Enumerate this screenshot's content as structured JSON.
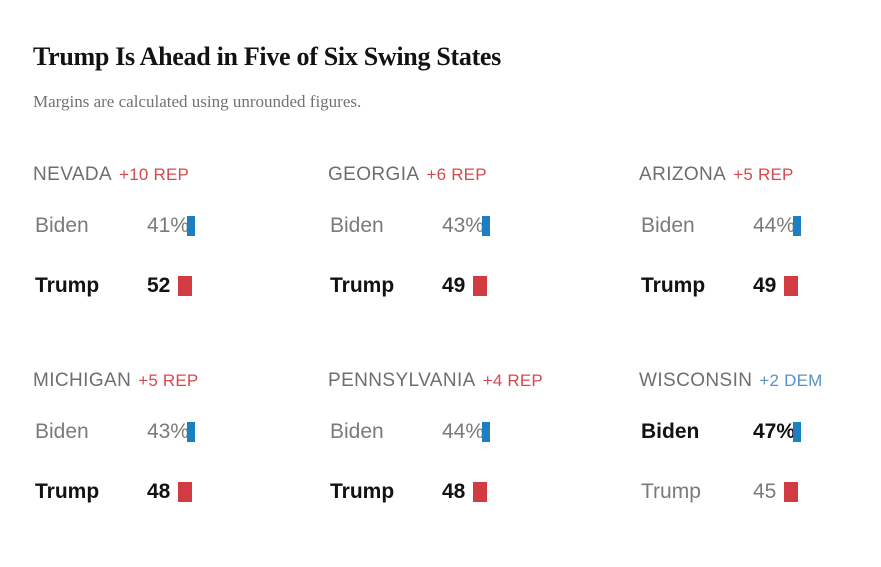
{
  "colors": {
    "dem-bar": "#1b7fc1",
    "rep-bar": "#d23b42",
    "dem-text": "#5493c9",
    "rep-text": "#d6494f",
    "text-dark": "#121212",
    "text-gray": "#7a7a7a",
    "state-gray": "#6e6e6e",
    "subtitle-gray": "#727272"
  },
  "chart_data": {
    "type": "bar",
    "title": "Trump Is Ahead in Five of Six Swing States",
    "subtitle": "Margins are calculated using unrounded figures.",
    "unit": "%",
    "legend_position": "none",
    "grid": false,
    "panels": [
      {
        "state": "NEVADA",
        "margin_label": "+10 REP",
        "margin_is_dem": false,
        "rows": [
          {
            "candidate": "Biden",
            "value": 41,
            "value_label": "41%",
            "party": "DEM",
            "emphasis": false
          },
          {
            "candidate": "Trump",
            "value": 52,
            "value_label": "52",
            "party": "REP",
            "emphasis": true
          }
        ]
      },
      {
        "state": "GEORGIA",
        "margin_label": "+6 REP",
        "margin_is_dem": false,
        "rows": [
          {
            "candidate": "Biden",
            "value": 43,
            "value_label": "43%",
            "party": "DEM",
            "emphasis": false
          },
          {
            "candidate": "Trump",
            "value": 49,
            "value_label": "49",
            "party": "REP",
            "emphasis": true
          }
        ]
      },
      {
        "state": "ARIZONA",
        "margin_label": "+5 REP",
        "margin_is_dem": false,
        "rows": [
          {
            "candidate": "Biden",
            "value": 44,
            "value_label": "44%",
            "party": "DEM",
            "emphasis": false
          },
          {
            "candidate": "Trump",
            "value": 49,
            "value_label": "49",
            "party": "REP",
            "emphasis": true
          }
        ]
      },
      {
        "state": "MICHIGAN",
        "margin_label": "+5 REP",
        "margin_is_dem": false,
        "rows": [
          {
            "candidate": "Biden",
            "value": 43,
            "value_label": "43%",
            "party": "DEM",
            "emphasis": false
          },
          {
            "candidate": "Trump",
            "value": 48,
            "value_label": "48",
            "party": "REP",
            "emphasis": true
          }
        ]
      },
      {
        "state": "PENNSYLVANIA",
        "margin_label": "+4 REP",
        "margin_is_dem": false,
        "rows": [
          {
            "candidate": "Biden",
            "value": 44,
            "value_label": "44%",
            "party": "DEM",
            "emphasis": false
          },
          {
            "candidate": "Trump",
            "value": 48,
            "value_label": "48",
            "party": "REP",
            "emphasis": true
          }
        ]
      },
      {
        "state": "WISCONSIN",
        "margin_label": "+2 DEM",
        "margin_is_dem": true,
        "rows": [
          {
            "candidate": "Biden",
            "value": 47,
            "value_label": "47%",
            "party": "DEM",
            "emphasis": true
          },
          {
            "candidate": "Trump",
            "value": 45,
            "value_label": "45",
            "party": "REP",
            "emphasis": false
          }
        ]
      }
    ]
  }
}
